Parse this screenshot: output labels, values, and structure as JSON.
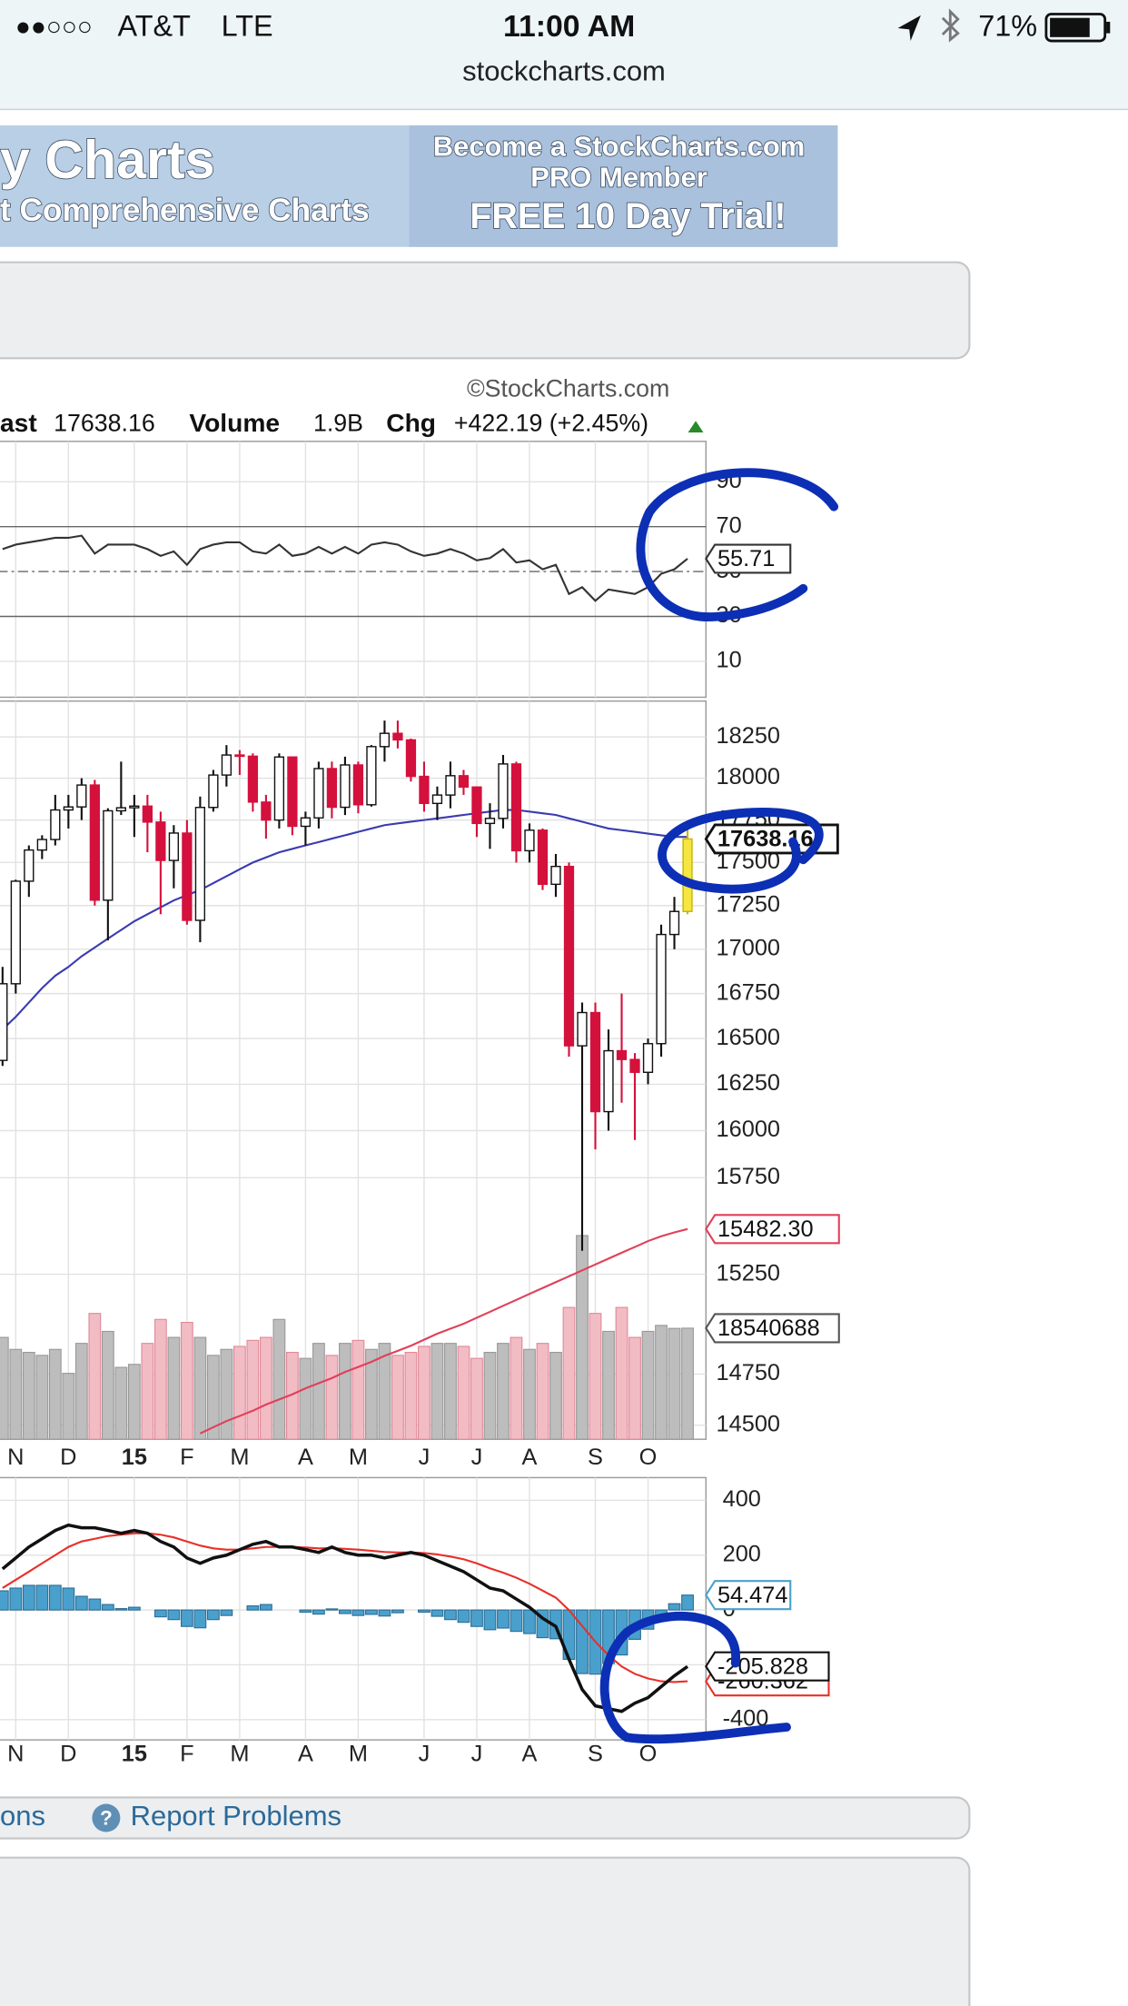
{
  "status_bar": {
    "signal": "●●○○○",
    "carrier": "AT&T",
    "network": "LTE",
    "time": "11:00 AM",
    "battery": "71%"
  },
  "address": "stockcharts.com",
  "banner": {
    "left_line1": "y Charts",
    "left_line2": "t Comprehensive Charts",
    "right_line1": "Become a StockCharts.com",
    "right_line2": "PRO Member",
    "right_line3": "FREE 10 Day Trial!"
  },
  "chart": {
    "credit": "©StockCharts.com",
    "header": {
      "last_label": "ast",
      "volume_label": "Volume",
      "volume": "1.9B",
      "chg_label": "Chg",
      "chg": "+422.19 (+2.45%)"
    },
    "categories": [
      null,
      "N",
      null,
      null,
      null,
      "D",
      null,
      null,
      null,
      null,
      "15",
      null,
      null,
      null,
      "F",
      null,
      null,
      null,
      "M",
      null,
      null,
      null,
      null,
      "A",
      null,
      null,
      null,
      "M",
      null,
      null,
      null,
      null,
      "J",
      null,
      null,
      null,
      "J",
      null,
      null,
      null,
      "A",
      null,
      null,
      null,
      null,
      "S",
      null,
      null,
      null,
      "O",
      null,
      null,
      null
    ],
    "rsi": {
      "ylim": [
        -6,
        108
      ],
      "yticks": [
        90,
        70,
        50,
        30,
        10
      ],
      "color": "#333333",
      "values": [
        60,
        62,
        63,
        64,
        65,
        65,
        66,
        58,
        62,
        62,
        62,
        60,
        57,
        59,
        53,
        60,
        62,
        63,
        63,
        59,
        58,
        62,
        57,
        58,
        61,
        58,
        61,
        58,
        62,
        63,
        62,
        59,
        57,
        58,
        60,
        58,
        55,
        56,
        60,
        54,
        55,
        51,
        53,
        40,
        43,
        37,
        42,
        41,
        40,
        43,
        49,
        51,
        55.71
      ]
    },
    "price": {
      "log_scale": true,
      "ylim": [
        14432,
        18470
      ],
      "yticks": [
        18250,
        18000,
        17750,
        17500,
        17250,
        17000,
        16750,
        16500,
        16250,
        16000,
        15750,
        15250,
        14750,
        14500
      ],
      "up_color": "#ffffff",
      "down_color": "#d4113c",
      "last_color": "#f5e642",
      "open": [
        16380,
        16805,
        17391,
        17573,
        17635,
        17810,
        17828,
        17959,
        17281,
        17805,
        17823,
        17833,
        17738,
        17512,
        17673,
        17165,
        17825,
        18019,
        18140,
        18133,
        17857,
        17750,
        18128,
        17713,
        17763,
        18058,
        17826,
        18080,
        17841,
        18191,
        18272,
        18232,
        18011,
        17849,
        17899,
        18015,
        17947,
        17730,
        17760,
        18086,
        17569,
        17690,
        17373,
        17477,
        16460,
        16644,
        16102,
        16433,
        16385,
        16315,
        16472,
        17084,
        17216
      ],
      "high": [
        16900,
        17400,
        17600,
        17660,
        17900,
        17900,
        18000,
        17990,
        17820,
        18100,
        17900,
        17900,
        17800,
        17720,
        17750,
        17890,
        18050,
        18200,
        18170,
        18150,
        17900,
        18150,
        18130,
        17800,
        18100,
        18100,
        18130,
        18100,
        18200,
        18350,
        18350,
        18240,
        18100,
        17950,
        18100,
        18050,
        17950,
        17850,
        18140,
        18100,
        17730,
        17700,
        17550,
        17500,
        16700,
        16700,
        16550,
        16750,
        16420,
        16500,
        17140,
        17300,
        17700
      ],
      "low": [
        16350,
        16750,
        17300,
        17520,
        17600,
        17700,
        17750,
        17250,
        17050,
        17780,
        17650,
        17560,
        17200,
        17350,
        17140,
        17040,
        17800,
        17950,
        18020,
        17800,
        17640,
        17700,
        17660,
        17600,
        17700,
        17760,
        17780,
        17790,
        17830,
        18100,
        18180,
        17980,
        17800,
        17750,
        17820,
        17900,
        17650,
        17580,
        17700,
        17500,
        17500,
        17340,
        17300,
        16400,
        15370,
        15900,
        16000,
        16150,
        15950,
        16250,
        16400,
        17000,
        17200
      ],
      "close": [
        16805,
        17391,
        17573,
        17635,
        17810,
        17828,
        17959,
        17281,
        17805,
        17823,
        17833,
        17738,
        17512,
        17673,
        17165,
        17825,
        18019,
        18140,
        18133,
        17857,
        17750,
        18128,
        17713,
        17763,
        18058,
        17826,
        18080,
        17841,
        18191,
        18272,
        18232,
        18011,
        17849,
        17899,
        18015,
        17947,
        17730,
        17760,
        18086,
        17569,
        17690,
        17373,
        17477,
        16460,
        16644,
        16102,
        16433,
        16385,
        16315,
        16472,
        17084,
        17216,
        17638.16
      ],
      "series": [
        {
          "color": "#3b3bb0",
          "values": [
            16550,
            16620,
            16700,
            16780,
            16850,
            16900,
            16960,
            17010,
            17060,
            17110,
            17160,
            17200,
            17240,
            17280,
            17310,
            17340,
            17380,
            17420,
            17460,
            17500,
            17530,
            17560,
            17580,
            17600,
            17620,
            17640,
            17660,
            17680,
            17700,
            17720,
            17730,
            17740,
            17750,
            17760,
            17770,
            17780,
            17790,
            17800,
            17810,
            17810,
            17800,
            17790,
            17780,
            17760,
            17740,
            17720,
            17700,
            17690,
            17680,
            17670,
            17660,
            17650,
            17650
          ]
        },
        {
          "color": "#e0405a",
          "values": [
            null,
            null,
            null,
            null,
            null,
            null,
            null,
            null,
            null,
            null,
            null,
            null,
            null,
            null,
            null,
            14460,
            14490,
            14520,
            14545,
            14570,
            14600,
            14625,
            14650,
            14680,
            14705,
            14730,
            14760,
            14785,
            14810,
            14840,
            14865,
            14890,
            14920,
            14950,
            14975,
            15000,
            15030,
            15060,
            15090,
            15120,
            15150,
            15180,
            15210,
            15240,
            15270,
            15300,
            15330,
            15360,
            15390,
            15420,
            15445,
            15465,
            15482.3
          ],
          "value_labels": [
            null,
            null,
            null,
            null,
            null,
            null,
            null,
            null,
            null,
            null,
            null,
            null,
            null,
            null,
            null,
            null,
            null,
            null,
            null,
            null,
            null,
            null,
            null,
            null,
            null,
            null,
            null,
            null,
            null,
            null,
            null,
            null,
            null,
            null,
            null,
            null,
            null,
            null,
            null,
            null,
            null,
            null,
            null,
            null,
            null,
            null,
            null,
            null,
            null,
            null,
            null,
            null,
            "15482.30"
          ]
        }
      ]
    },
    "volume": {
      "ylim": [
        0,
        39500000
      ],
      "up_color": "#bdbdbd",
      "down_color": "#f2bcc4",
      "values": [
        17000000,
        15000000,
        14500000,
        14000000,
        15000000,
        11000000,
        16000000,
        21000000,
        18000000,
        12000000,
        12500000,
        16000000,
        20000000,
        17000000,
        19500000,
        17000000,
        14000000,
        15000000,
        15500000,
        16500000,
        17000000,
        20000000,
        14500000,
        13500000,
        16000000,
        14000000,
        16000000,
        16500000,
        15000000,
        16000000,
        14000000,
        14500000,
        15500000,
        16000000,
        16000000,
        15500000,
        13500000,
        14500000,
        16000000,
        17000000,
        15000000,
        16000000,
        14500000,
        22000000,
        34000000,
        21000000,
        18000000,
        22000000,
        17000000,
        18000000,
        19000000,
        18500000,
        18540688
      ]
    },
    "macd": {
      "ylim": [
        -474,
        483
      ],
      "yticks": [
        400,
        200,
        0,
        -200,
        -400
      ],
      "series": [
        {
          "color": "#111111",
          "values": [
            150,
            190,
            230,
            260,
            290,
            310,
            300,
            300,
            290,
            280,
            290,
            280,
            250,
            230,
            190,
            170,
            190,
            200,
            220,
            240,
            250,
            230,
            230,
            220,
            210,
            230,
            210,
            200,
            200,
            190,
            200,
            210,
            200,
            180,
            160,
            140,
            110,
            80,
            70,
            40,
            10,
            -30,
            -60,
            -180,
            -290,
            -350,
            -360,
            -370,
            -340,
            -320,
            -280,
            -240,
            -205.828
          ]
        },
        {
          "color": "#e8302a",
          "values": [
            80,
            110,
            140,
            170,
            200,
            230,
            250,
            260,
            270,
            275,
            280,
            280,
            275,
            265,
            250,
            235,
            225,
            220,
            220,
            225,
            230,
            230,
            230,
            228,
            225,
            226,
            223,
            220,
            216,
            212,
            210,
            210,
            208,
            203,
            195,
            185,
            170,
            152,
            136,
            118,
            96,
            71,
            45,
            0,
            -58,
            -116,
            -165,
            -206,
            -233,
            -250,
            -260,
            -263,
            -260.362
          ]
        }
      ],
      "histogram": {
        "color": "#4aa0cc",
        "values": [
          70,
          80,
          90,
          90,
          90,
          80,
          50,
          40,
          20,
          5,
          10,
          0,
          -25,
          -35,
          -60,
          -65,
          -35,
          -20,
          0,
          15,
          20,
          0,
          0,
          -8,
          -15,
          4,
          -13,
          -20,
          -16,
          -22,
          -10,
          0,
          -8,
          -23,
          -35,
          -45,
          -60,
          -72,
          -66,
          -78,
          -86,
          -101,
          -105,
          -180,
          -232,
          -234,
          -195,
          -164,
          -107,
          -70,
          -20,
          23,
          54.474
        ]
      }
    }
  },
  "footer": {
    "link_partial": "ons",
    "help_icon": "?",
    "report": "Report Problems"
  }
}
